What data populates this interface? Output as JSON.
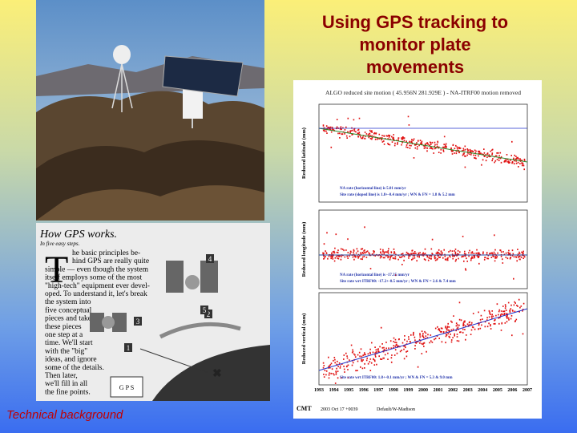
{
  "slide": {
    "title_lines": [
      "Using GPS tracking to",
      "monitor plate",
      "movements"
    ],
    "caption": "Technical background",
    "article": {
      "heading": "How GPS works.",
      "byline": "In five easy steps.",
      "dropcap": "T",
      "body_lines": [
        "he basic principles be-",
        "hind GPS are really quite",
        "simple — even though the system",
        "itself employs some of the most",
        "\"high-tech\" equipment ever devel-",
        "oped. To understand it, let's break",
        "the system into",
        "five conceptual",
        "pieces and take",
        "these pieces",
        "one step at a",
        "time. We'll start",
        "with the \"big\"",
        "ideas, and ignore",
        "some of the details.",
        "Then later,",
        "we'll fill in all",
        "the fine points."
      ],
      "step_numbers": [
        "1",
        "2",
        "3",
        "4",
        "5"
      ],
      "logo": "G P S"
    },
    "plot": {
      "title": "ALGO reduced site motion ( 45.956N 281.929E ) - NA-ITRF00 motion removed",
      "panel_labels": [
        "Reduced latitude (mm)",
        "Reduced longitude (mm)",
        "Reduced vertical (mm)"
      ],
      "panel_notes": [
        [
          "NA rate (horizontal line) is 5.01 mm/yr",
          "Site rate (sloped line) is  1.8+-0.4 mm/yr ; WN & FN =  1.8 &  5.2 mm"
        ],
        [
          "NA rate (horizontal line) is -17.35 mm/yr",
          "Site rate wrt ITRF00: -17.2+-0.5 mm/yr ; WN & FN =  2.6 &  7.4 mm"
        ],
        [
          "Site rate wrt ITRF00:  1.8+-0.1 mm/yr ; WN & FN =  5.3 &  9.0 mm"
        ]
      ],
      "years": [
        "1993",
        "1994",
        "1995",
        "1996",
        "1997",
        "1998",
        "1999",
        "2000",
        "2001",
        "2002",
        "2003",
        "2004",
        "2005",
        "2006",
        "2007"
      ],
      "footer": [
        "CMT",
        "2003 Oct 17 +0039",
        "Default/W-Madison"
      ]
    }
  }
}
